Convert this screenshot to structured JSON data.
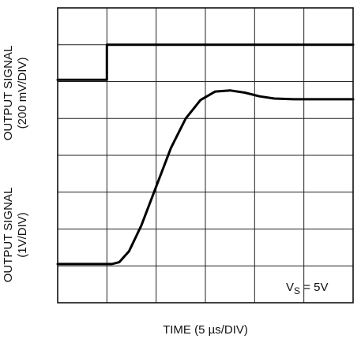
{
  "chart_data": {
    "type": "line",
    "ylabel_top": "OUTPUT SIGNAL",
    "ylabel_top_scale": "(200 mV/DIV)",
    "ylabel_bottom": "OUTPUT SIGNAL",
    "ylabel_bottom_scale": "(1V/DIV)",
    "xlabel": "TIME (5 µs/DIV)",
    "annotation": {
      "main": "V",
      "sub": "S",
      "rest": " = 5V"
    },
    "grid": true,
    "x_divisions": 6,
    "y_divisions": 8,
    "xlim": [
      0,
      6
    ],
    "ylim": [
      0,
      8
    ],
    "series": [
      {
        "points": [
          [
            0,
            6.05
          ],
          [
            1.0,
            6.05
          ],
          [
            1.0,
            7.0
          ],
          [
            6,
            7.0
          ]
        ]
      },
      {
        "points": [
          [
            0,
            1.05
          ],
          [
            1.1,
            1.05
          ],
          [
            1.25,
            1.1
          ],
          [
            1.45,
            1.4
          ],
          [
            1.7,
            2.1
          ],
          [
            2.0,
            3.15
          ],
          [
            2.3,
            4.2
          ],
          [
            2.6,
            5.0
          ],
          [
            2.9,
            5.5
          ],
          [
            3.2,
            5.73
          ],
          [
            3.5,
            5.76
          ],
          [
            3.8,
            5.7
          ],
          [
            4.1,
            5.6
          ],
          [
            4.4,
            5.54
          ],
          [
            4.8,
            5.52
          ],
          [
            5.3,
            5.52
          ],
          [
            6,
            5.52
          ]
        ]
      }
    ]
  }
}
